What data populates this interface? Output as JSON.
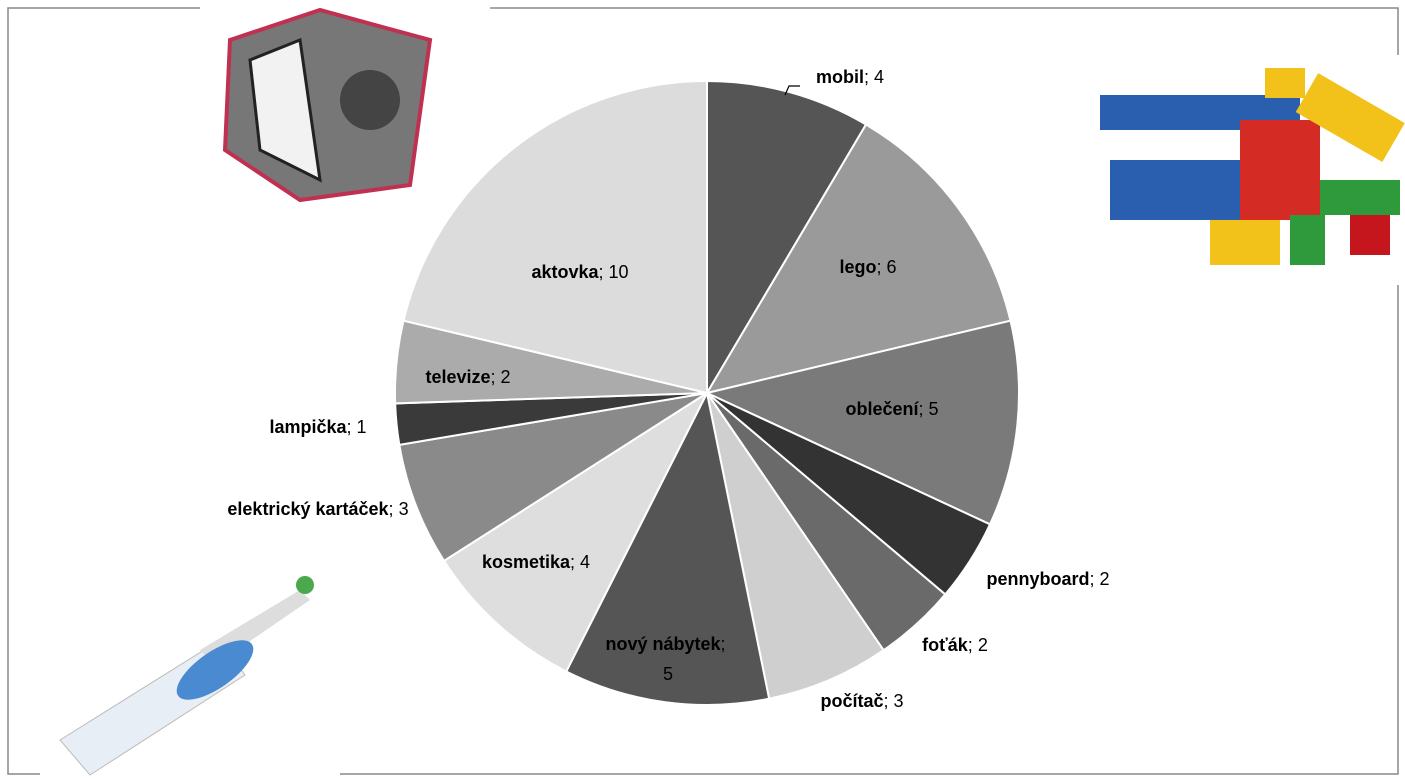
{
  "chart_data": {
    "type": "pie",
    "categories": [
      "mobil",
      "lego",
      "oblečení",
      "pennyboard",
      "foťák",
      "počítač",
      "nový nábytek",
      "kosmetika",
      "elektrický kartáček",
      "lampička",
      "televize",
      "aktovka"
    ],
    "values": [
      4,
      6,
      5,
      2,
      2,
      3,
      5,
      4,
      3,
      1,
      2,
      10
    ],
    "colors": [
      "#555555",
      "#9a9a9a",
      "#7a7a7a",
      "#333333",
      "#6a6a6a",
      "#cfcfcf",
      "#555555",
      "#dedede",
      "#8a8a8a",
      "#3a3a3a",
      "#ababab",
      "#dcdcdc"
    ],
    "label_separator": "; "
  }
}
